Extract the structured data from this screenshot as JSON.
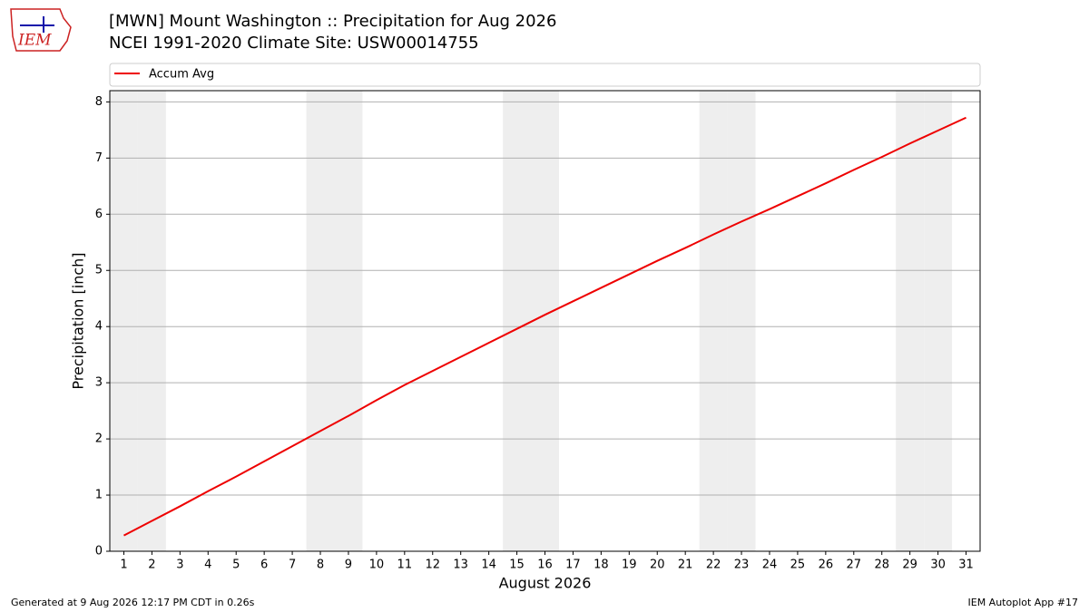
{
  "logo": "IEM",
  "footer": {
    "left": "Generated at 9 Aug 2026 12:17 PM CDT in 0.26s",
    "right": "IEM Autoplot App #17"
  },
  "chart_data": {
    "type": "line",
    "title": "[MWN] Mount Washington :: Precipitation for Aug 2026",
    "subtitle": "NCEI 1991-2020 Climate Site: USW00014755",
    "x_label": "August 2026",
    "y_label": "Precipitation [inch]",
    "x": [
      1,
      2,
      3,
      4,
      5,
      6,
      7,
      8,
      9,
      10,
      11,
      12,
      13,
      14,
      15,
      16,
      17,
      18,
      19,
      20,
      21,
      22,
      23,
      24,
      25,
      26,
      27,
      28,
      29,
      30,
      31
    ],
    "series": [
      {
        "name": "Accum Avg",
        "color": "#ee0000",
        "values": [
          0.28,
          0.54,
          0.8,
          1.07,
          1.33,
          1.6,
          1.87,
          2.14,
          2.41,
          2.69,
          2.96,
          3.21,
          3.46,
          3.71,
          3.96,
          4.21,
          4.45,
          4.69,
          4.93,
          5.17,
          5.4,
          5.64,
          5.87,
          6.09,
          6.32,
          6.55,
          6.79,
          7.02,
          7.26,
          7.49,
          7.72
        ]
      }
    ],
    "xlim": [
      0.5,
      31.5
    ],
    "xticks": [
      1,
      2,
      3,
      4,
      5,
      6,
      7,
      8,
      9,
      10,
      11,
      12,
      13,
      14,
      15,
      16,
      17,
      18,
      19,
      20,
      21,
      22,
      23,
      24,
      25,
      26,
      27,
      28,
      29,
      30,
      31
    ],
    "ylim": [
      0,
      8.2
    ],
    "yticks": [
      0,
      1,
      2,
      3,
      4,
      5,
      6,
      7,
      8
    ],
    "grid": "y",
    "legend": "top",
    "shaded_days": [
      1,
      2,
      8,
      9,
      15,
      16,
      22,
      23,
      29,
      30
    ],
    "shade_color": "#eeeeee"
  }
}
